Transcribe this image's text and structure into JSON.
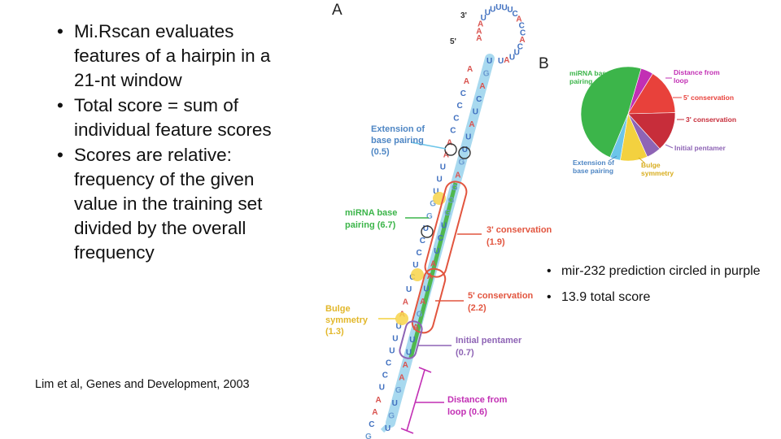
{
  "left_bullets": [
    "Mi.Rscan evaluates features of a hairpin in a 21-nt window",
    "Total score = sum of individual feature scores",
    "Scores are relative: frequency of the given value in the training set divided by the overall frequency"
  ],
  "citation": "Lim et al, Genes and Development, 2003",
  "right_bullets": [
    "mir-232 prediction circled in purple",
    "13.9 total score"
  ],
  "figure": {
    "panel_a": "A",
    "panel_b": "B",
    "end_3": "3'",
    "end_5": "5'",
    "labels": {
      "extension": [
        "Extension of",
        "base pairing",
        "(0.5)"
      ],
      "mirna": [
        "miRNA base",
        "pairing  (6.7)"
      ],
      "three_cons": [
        "3' conservation",
        "(1.9)"
      ],
      "five_cons": [
        "5' conservation",
        "(2.2)"
      ],
      "bulge": [
        "Bulge",
        "symmetry",
        "(1.3)"
      ],
      "pentamer": [
        "Initial pentamer",
        "(0.7)"
      ],
      "distance": [
        "Distance from",
        "loop (0.6)"
      ]
    },
    "pie_labels": {
      "mirna": [
        "miRNA base",
        "pairing"
      ],
      "distance": [
        "Distance from",
        "loop"
      ],
      "five_cons": "5' conservation",
      "three_cons": "3' conservation",
      "pentamer": "Initial pentamer",
      "bulge": [
        "Bulge",
        "symmetry"
      ],
      "extension": [
        "Extension of",
        "base pairing"
      ]
    },
    "colors": {
      "mirna": "#3cb54a",
      "distance": "#c22fb4",
      "five_cons": "#e8413b",
      "three_cons": "#c72d3a",
      "pentamer": "#8e64b5",
      "bulge": "#f3d13f",
      "extension": "#6cc5e9"
    },
    "pie_values": {
      "mirna": 6.7,
      "distance": 0.6,
      "five_cons": 2.2,
      "three_cons": 1.9,
      "pentamer": 0.7,
      "bulge": 1.3,
      "extension": 0.5
    },
    "loop_nt": [
      "A",
      "A",
      "A",
      "U",
      "U",
      "U",
      "U",
      "U",
      "U",
      "C",
      "A",
      "C",
      "C",
      "A",
      "C",
      "U",
      "U",
      "A",
      "U"
    ],
    "stem_left": [
      "A",
      "A",
      "C",
      "C",
      "C",
      "C",
      "A",
      "A",
      "U",
      "U",
      "U",
      "G",
      "G",
      "U",
      "C",
      "C",
      "U",
      "C",
      "U",
      "A",
      "A",
      "U",
      "U",
      "U",
      "C",
      "C",
      "U",
      "A",
      "A",
      "C",
      "G"
    ],
    "stem_right": [
      "U",
      "G",
      "A",
      "C",
      "U",
      "A",
      "U",
      "U",
      "G",
      "A",
      "G",
      "G",
      "G",
      "U",
      "C",
      "U",
      "A",
      "A",
      "U",
      "A",
      "G",
      "A",
      "U",
      "U",
      "A",
      "A",
      "G",
      "U",
      "G",
      "U"
    ]
  }
}
